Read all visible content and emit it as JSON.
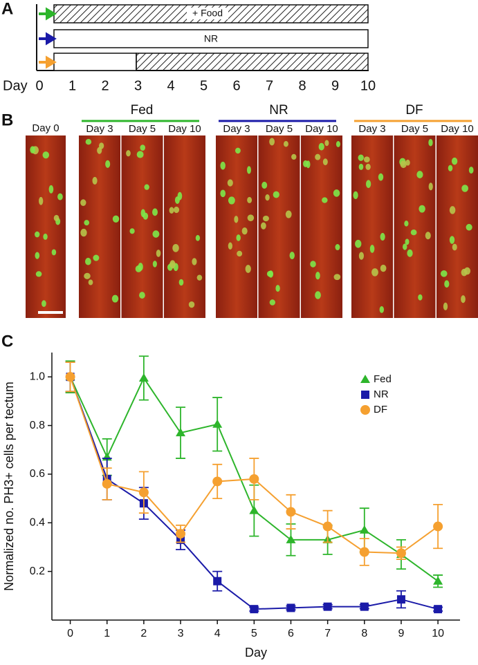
{
  "panels": {
    "a": "A",
    "b": "B",
    "c": "C"
  },
  "timeline": {
    "axis_label": "Day",
    "ticks": [
      0,
      1,
      2,
      3,
      4,
      5,
      6,
      7,
      8,
      9,
      10
    ],
    "bars": [
      "+ Food",
      "NR"
    ]
  },
  "images": {
    "day0": "Day 0",
    "groups": [
      {
        "name": "Fed",
        "color": "#2db52b",
        "labels": [
          "Day 3",
          "Day 5",
          "Day 10"
        ]
      },
      {
        "name": "NR",
        "color": "#1a1aa8",
        "labels": [
          "Day 3",
          "Day 5",
          "Day 10"
        ]
      },
      {
        "name": "DF",
        "color": "#f5a030",
        "labels": [
          "Day 3",
          "Day 5",
          "Day 10"
        ]
      }
    ]
  },
  "chart_data": {
    "type": "line",
    "xlabel": "Day",
    "ylabel": "Normalized no. PH3+ cells per tectum",
    "x": [
      0,
      1,
      2,
      3,
      4,
      5,
      6,
      7,
      8,
      9,
      10
    ],
    "xlim": [
      -0.5,
      10.6
    ],
    "xticks": [
      0,
      1,
      2,
      3,
      4,
      5,
      6,
      7,
      8,
      9,
      10
    ],
    "ylim": [
      0,
      1.1
    ],
    "yticks": [
      0.2,
      0.4,
      0.6,
      0.8,
      {
        "value": 1.0,
        "label": "1.0"
      }
    ],
    "legend": "upper right",
    "series": [
      {
        "name": "Fed",
        "color": "#2db52b",
        "marker": "triangle",
        "values": [
          1.0,
          0.67,
          0.995,
          0.77,
          0.805,
          0.45,
          0.33,
          0.33,
          0.37,
          0.27,
          0.16
        ],
        "errors": [
          0.065,
          0.075,
          0.09,
          0.105,
          0.11,
          0.105,
          0.065,
          0.06,
          0.09,
          0.06,
          0.025
        ]
      },
      {
        "name": "NR",
        "color": "#1a1aa8",
        "marker": "square",
        "values": [
          1.0,
          0.58,
          0.48,
          0.33,
          0.16,
          0.045,
          0.05,
          0.055,
          0.055,
          0.085,
          0.045
        ],
        "errors": [
          0.06,
          0.085,
          0.065,
          0.04,
          0.04,
          0.008,
          0.008,
          0.008,
          0.008,
          0.035,
          0.008
        ]
      },
      {
        "name": "DF",
        "color": "#f5a030",
        "marker": "circle",
        "values": [
          1.0,
          0.56,
          0.525,
          0.355,
          0.57,
          0.58,
          0.445,
          0.385,
          0.28,
          0.275,
          0.385
        ],
        "errors": [
          0.06,
          0.065,
          0.085,
          0.035,
          0.07,
          0.085,
          0.07,
          0.065,
          0.055,
          0.025,
          0.09
        ]
      }
    ]
  }
}
